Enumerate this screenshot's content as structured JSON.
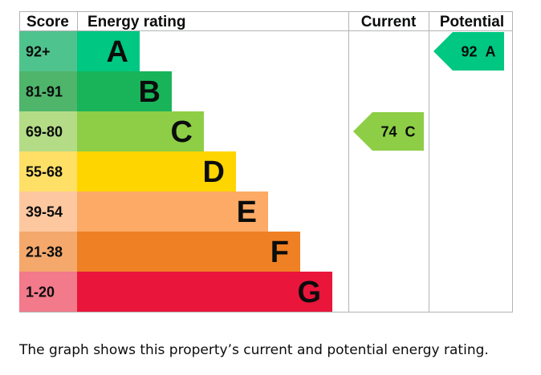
{
  "chart_data": {
    "type": "bar",
    "headers": {
      "score": "Score",
      "rating": "Energy rating",
      "current": "Current",
      "potential": "Potential"
    },
    "bands": [
      {
        "range": "92+",
        "letter": "A",
        "score_color": "#4fc38d",
        "bar_color": "#00c781",
        "level": 1
      },
      {
        "range": "81-91",
        "letter": "B",
        "score_color": "#4fb56b",
        "bar_color": "#19b459",
        "level": 2
      },
      {
        "range": "69-80",
        "letter": "C",
        "score_color": "#b4dc87",
        "bar_color": "#8dce46",
        "level": 3
      },
      {
        "range": "55-68",
        "letter": "D",
        "score_color": "#ffe066",
        "bar_color": "#ffd500",
        "level": 4
      },
      {
        "range": "39-54",
        "letter": "E",
        "score_color": "#fdc8a0",
        "bar_color": "#fcaa65",
        "level": 5
      },
      {
        "range": "21-38",
        "letter": "F",
        "score_color": "#f4a86c",
        "bar_color": "#ef8023",
        "level": 6
      },
      {
        "range": "1-20",
        "letter": "G",
        "score_color": "#f27a8a",
        "bar_color": "#e9153b",
        "level": 7
      }
    ],
    "current": {
      "value": 74,
      "letter": "C",
      "label": "74 C",
      "color": "#8dce46"
    },
    "potential": {
      "value": 92,
      "letter": "A",
      "label": "92 A",
      "color": "#00c781"
    }
  },
  "caption": "The graph shows this property’s current and potential energy rating."
}
